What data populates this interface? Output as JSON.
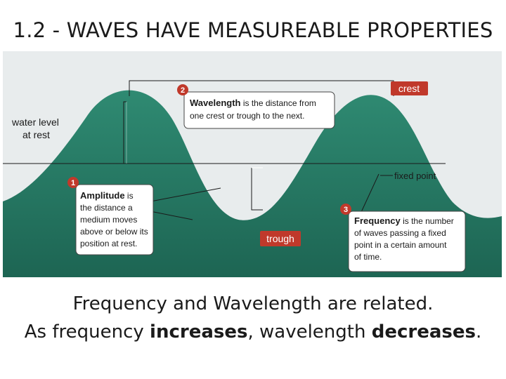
{
  "slide": {
    "title": "1.2 - WAVES HAVE MEASUREABLE PROPERTIES",
    "caption_line1": "Frequency and Wavelength are related.",
    "caption_line2_a": "As frequency ",
    "caption_line2_b": "increases",
    "caption_line2_c": ", wavelength ",
    "caption_line2_d": "decreases",
    "caption_line2_e": "."
  },
  "diagram": {
    "water_level_line1": "water level",
    "water_level_line2": "at rest",
    "crest_label": "crest",
    "trough_label": "trough",
    "fixed_point_label": "fixed point",
    "callouts": [
      {
        "number": "2",
        "term": "Wavelength",
        "line1_rest": " is the distance from",
        "line2": "one crest or trough to the next."
      },
      {
        "number": "1",
        "term": "Amplitude",
        "line1_rest": " is",
        "line2": "the distance a",
        "line3": "medium moves",
        "line4": "above or below its",
        "line5": "position at rest."
      },
      {
        "number": "3",
        "term": "Frequency",
        "line1_rest": " is the number",
        "line2": "of waves passing a fixed",
        "line3": "point in a certain amount",
        "line4": "of time."
      }
    ],
    "colors": {
      "water": "#2a7a66",
      "sky": "#e9eef0",
      "badge": "#c0392b",
      "wave": "#1f6f5b"
    }
  }
}
